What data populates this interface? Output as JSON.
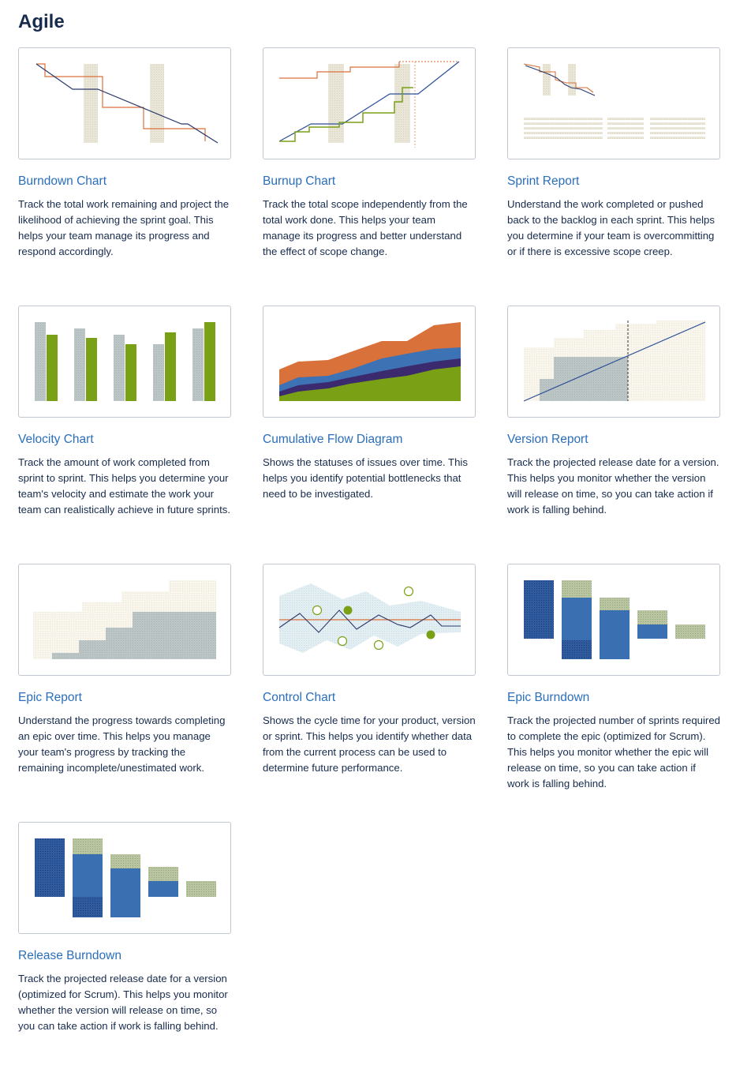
{
  "page": {
    "title": "Agile"
  },
  "colors": {
    "accent_link": "#2a6ebb",
    "blue": "#3d72b4",
    "dark_blue": "#2a4f98",
    "navy": "#2b3a6b",
    "green": "#7aa116",
    "orange": "#d9713a",
    "grey": "#b3bdbd",
    "sand": "#e6e3d4",
    "purple": "#3b2a6d"
  },
  "reports": [
    {
      "title": "Burndown Chart",
      "icon": "burndown-chart-thumbnail",
      "description": "Track the total work remaining and project the likelihood of achieving the sprint goal. This helps your team manage its progress and respond accordingly."
    },
    {
      "title": "Burnup Chart",
      "icon": "burnup-chart-thumbnail",
      "description": "Track the total scope independently from the total work done. This helps your team manage its progress and better understand the effect of scope change."
    },
    {
      "title": "Sprint Report",
      "icon": "sprint-report-thumbnail",
      "description": "Understand the work completed or pushed back to the backlog in each sprint. This helps you determine if your team is overcommitting or if there is excessive scope creep."
    },
    {
      "title": "Velocity Chart",
      "icon": "velocity-chart-thumbnail",
      "description": "Track the amount of work completed from sprint to sprint. This helps you determine your team's velocity and estimate the work your team can realistically achieve in future sprints."
    },
    {
      "title": "Cumulative Flow Diagram",
      "icon": "cumulative-flow-thumbnail",
      "description": "Shows the statuses of issues over time. This helps you identify potential bottlenecks that need to be investigated."
    },
    {
      "title": "Version Report",
      "icon": "version-report-thumbnail",
      "description": "Track the projected release date for a version. This helps you monitor whether the version will release on time, so you can take action if work is falling behind."
    },
    {
      "title": "Epic Report",
      "icon": "epic-report-thumbnail",
      "description": "Understand the progress towards completing an epic over time. This helps you manage your team's progress by tracking the remaining incomplete/unestimated work."
    },
    {
      "title": "Control Chart",
      "icon": "control-chart-thumbnail",
      "description": "Shows the cycle time for your product, version or sprint. This helps you identify whether data from the current process can be used to determine future performance."
    },
    {
      "title": "Epic Burndown",
      "icon": "epic-burndown-thumbnail",
      "description": "Track the projected number of sprints required to complete the epic (optimized for Scrum). This helps you monitor whether the epic will release on time, so you can take action if work is falling behind."
    },
    {
      "title": "Release Burndown",
      "icon": "release-burndown-thumbnail",
      "description": "Track the projected release date for a version (optimized for Scrum). This helps you monitor whether the version will release on time, so you can take action if work is falling behind."
    }
  ]
}
